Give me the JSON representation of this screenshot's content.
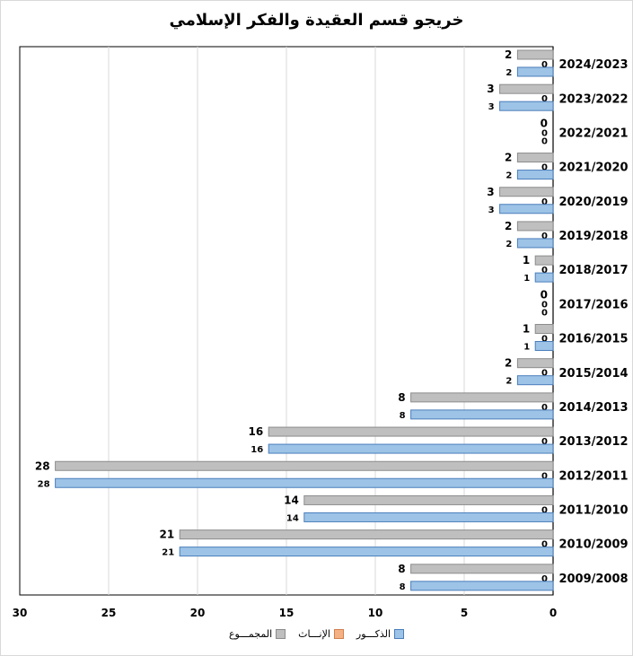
{
  "chart_data": {
    "type": "bar",
    "orientation": "horizontal",
    "title": "خريجو قسم العقيدة والفكر الإسلامي",
    "xlim": [
      0,
      30
    ],
    "x_reversed": true,
    "xticks": [
      30,
      25,
      20,
      15,
      10,
      5,
      0
    ],
    "grid": true,
    "legend_position": "bottom",
    "categories": [
      "2024/2023",
      "2023/2022",
      "2022/2021",
      "2021/2020",
      "2020/2019",
      "2019/2018",
      "2018/2017",
      "2017/2016",
      "2016/2015",
      "2015/2014",
      "2014/2013",
      "2013/2012",
      "2012/2011",
      "2011/2010",
      "2010/2009",
      "2009/2008"
    ],
    "series": [
      {
        "name": "المجمـــوع",
        "color": "#bfbfbf",
        "values": [
          2,
          3,
          0,
          2,
          3,
          2,
          1,
          0,
          1,
          2,
          8,
          16,
          28,
          14,
          21,
          8
        ]
      },
      {
        "name": "الإنـــاث",
        "color": "#f4b183",
        "values": [
          0,
          0,
          0,
          0,
          0,
          0,
          0,
          0,
          0,
          0,
          0,
          0,
          0,
          0,
          0,
          0
        ]
      },
      {
        "name": "الذكـــور",
        "color": "#9dc3e6",
        "values": [
          2,
          3,
          0,
          2,
          3,
          2,
          1,
          0,
          1,
          2,
          8,
          16,
          28,
          14,
          21,
          8
        ]
      }
    ]
  }
}
